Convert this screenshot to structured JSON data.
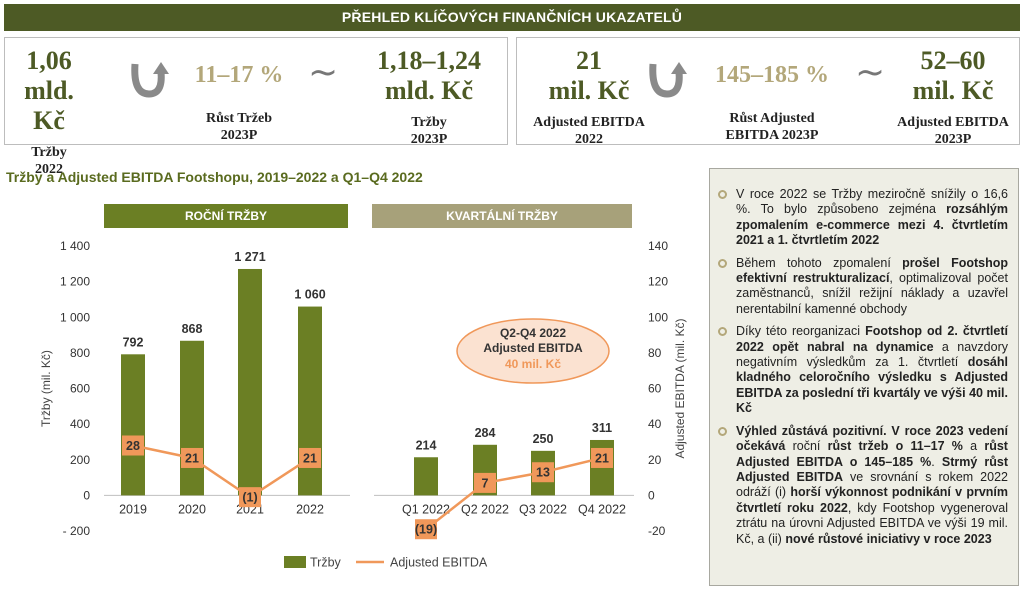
{
  "banner": "PŘEHLED KLÍČOVÝCH FINANČNÍCH UKAZATELŮ",
  "kpi_left": {
    "v1": [
      "1,06",
      "mld. Kč"
    ],
    "c1": [
      "Tržby",
      "2022"
    ],
    "growth": "11–17 %",
    "growth_cap": "Růst Tržeb",
    "growth_cap2": "2023P",
    "v2": [
      "1,18–1,24",
      "mld. Kč"
    ],
    "c2": [
      "Tržby",
      "2023P"
    ]
  },
  "kpi_right": {
    "v1": [
      "21",
      "mil. Kč"
    ],
    "c1": [
      "Adjusted EBITDA",
      "2022"
    ],
    "growth": "145–185 %",
    "growth_cap": "Růst Adjusted",
    "growth_cap2": "EBITDA 2023P",
    "v2": [
      "52–60",
      "mil. Kč"
    ],
    "c2": [
      "Adjusted EBITDA",
      "2023P"
    ]
  },
  "chart_title": "Tržby a Adjusted EBITDA Footshopu, 2019–2022 a Q1–Q4 2022",
  "panels": {
    "annual": "ROČNÍ TRŽBY",
    "quarterly": "KVARTÁLNÍ TRŽBY"
  },
  "callout": {
    "line1": "Q2-Q4 2022",
    "line2": "Adjusted EBITDA",
    "line3": "40 mil. Kč"
  },
  "colors": {
    "dark_green": "#4d5a25",
    "bar_green": "#6b7f24",
    "beige": "#a7a17a",
    "orange": "#f0985a",
    "callout_fill": "#fbe2d1",
    "callout_border": "#f0985a"
  },
  "chart_data": {
    "type": "bar",
    "categories": [
      "2019",
      "2020",
      "2021",
      "2022",
      "Q1 2022",
      "Q2 2022",
      "Q3 2022",
      "Q4 2022"
    ],
    "series": [
      {
        "name": "Tržby",
        "type": "bar",
        "axis": "left",
        "values": [
          792,
          868,
          1271,
          1060,
          214,
          284,
          250,
          311
        ]
      },
      {
        "name": "Adjusted EBITDA",
        "type": "line",
        "axis": "right",
        "values": [
          28,
          21,
          -1,
          21,
          -19,
          7,
          13,
          21
        ]
      }
    ],
    "bar_labels": [
      "792",
      "868",
      "1 271",
      "1 060",
      "214",
      "284",
      "250",
      "311"
    ],
    "line_labels": [
      "28",
      "21",
      "(1)",
      "21",
      "(19)",
      "7",
      "13",
      "21"
    ],
    "ylabel": "Tržby (mil. Kč)",
    "y2label": "Adjusted EBITDA (mil. Kč)",
    "ylim": [
      -200,
      1400
    ],
    "y2lim": [
      -20,
      140
    ],
    "yticks": [
      "- 200",
      "0",
      "200",
      "400",
      "600",
      "800",
      "1 000",
      "1 200",
      "1 400"
    ],
    "y2ticks": [
      "-20",
      "0",
      "20",
      "40",
      "60",
      "80",
      "100",
      "120",
      "140"
    ],
    "legend": [
      "Tržby",
      "Adjusted EBITDA"
    ],
    "legend_position": "bottom"
  },
  "notes": [
    [
      [
        "V roce 2022 se Tržby meziročně snížily o 16,6 %. To bylo způsobeno zejména ",
        false
      ],
      [
        "rozsáhlým zpomalením e-commerce mezi 4. čtvrtletím 2021 a 1. čtvrtletím 2022",
        true
      ]
    ],
    [
      [
        "Během tohoto zpomalení ",
        false
      ],
      [
        "prošel Footshop efektivní restrukturalizací",
        true
      ],
      [
        ", optimalizoval počet zaměstnanců, snížil režijní náklady a uzavřel nerentabilní kamenné obchody",
        false
      ]
    ],
    [
      [
        "Díky této reorganizaci ",
        false
      ],
      [
        "Footshop od 2. čtvrtletí 2022 opět nabral na dynamice",
        true
      ],
      [
        " a navzdory negativním výsledkům za 1. čtvrtletí ",
        false
      ],
      [
        "dosáhl kladného celoročního výsledku s Adjusted EBITDA za poslední tři kvartály ve výši 40 mil. Kč",
        true
      ]
    ],
    [
      [
        "Výhled zůstává pozitivní. V roce 2023 vedení očekává",
        true
      ],
      [
        " roční ",
        false
      ],
      [
        "růst tržeb o 11–17 %",
        true
      ],
      [
        " a ",
        false
      ],
      [
        "růst Adjusted EBITDA o 145–185 %",
        true
      ],
      [
        ". ",
        false
      ],
      [
        "Strmý růst Adjusted EBITDA",
        true
      ],
      [
        " ve srovnání s rokem 2022 odráží (i) ",
        false
      ],
      [
        "horší výkonnost podnikání v prvním čtvrtletí roku 2022",
        true
      ],
      [
        ", kdy Footshop vygeneroval ztrátu na úrovni Adjusted EBITDA ve výši 19 mil. Kč, a (ii) ",
        false
      ],
      [
        "nové růstové iniciativy v roce 2023",
        true
      ]
    ]
  ]
}
